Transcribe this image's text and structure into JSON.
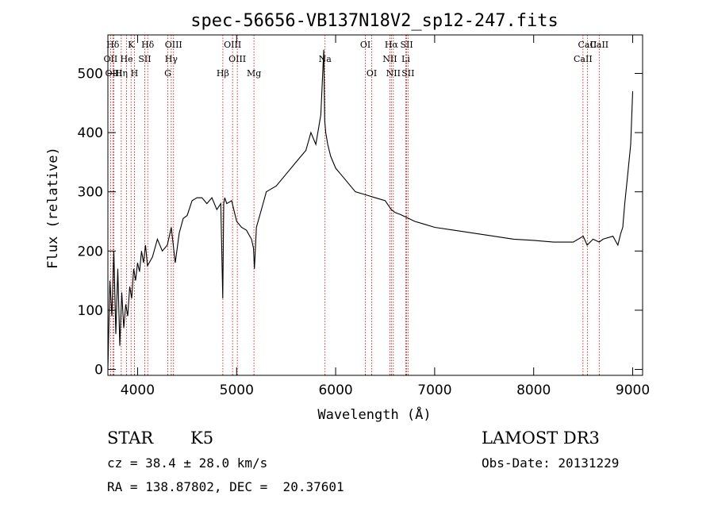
{
  "chart_data": {
    "type": "line",
    "title": "spec-56656-VB137N18V2_sp12-247.fits",
    "xlabel": "Wavelength (Å)",
    "ylabel": "Flux (relative)",
    "xlim": [
      3700,
      9100
    ],
    "ylim": [
      -10,
      565
    ],
    "xticks": [
      4000,
      5000,
      6000,
      7000,
      8000,
      9000
    ],
    "xtick_labels": [
      "4000",
      "5000",
      "6000",
      "7000",
      "8000",
      "9000"
    ],
    "yticks": [
      0,
      100,
      200,
      300,
      400,
      500
    ],
    "ytick_labels": [
      "0",
      "100",
      "200",
      "300",
      "400",
      "500"
    ],
    "series": [
      {
        "name": "flux",
        "x": [
          3700,
          3720,
          3740,
          3760,
          3780,
          3800,
          3820,
          3840,
          3860,
          3880,
          3900,
          3920,
          3940,
          3960,
          3980,
          4000,
          4020,
          4040,
          4060,
          4080,
          4100,
          4150,
          4200,
          4250,
          4300,
          4340,
          4380,
          4420,
          4460,
          4500,
          4550,
          4600,
          4650,
          4700,
          4750,
          4800,
          4840,
          4860,
          4870,
          4880,
          4900,
          4950,
          5000,
          5050,
          5100,
          5150,
          5170,
          5180,
          5200,
          5250,
          5300,
          5400,
          5500,
          5600,
          5700,
          5750,
          5800,
          5850,
          5880,
          5890,
          5900,
          5920,
          5950,
          6000,
          6050,
          6100,
          6150,
          6200,
          6300,
          6400,
          6500,
          6562,
          6600,
          6650,
          6700,
          6800,
          6900,
          7000,
          7200,
          7400,
          7600,
          7800,
          8000,
          8200,
          8400,
          8500,
          8540,
          8600,
          8662,
          8700,
          8800,
          8850,
          8880,
          8900,
          8920,
          8950,
          8980,
          9000
        ],
        "values": [
          0,
          150,
          90,
          200,
          60,
          170,
          40,
          130,
          70,
          110,
          90,
          140,
          120,
          170,
          150,
          180,
          165,
          200,
          180,
          210,
          175,
          190,
          220,
          200,
          210,
          240,
          180,
          230,
          255,
          260,
          285,
          290,
          290,
          280,
          290,
          270,
          280,
          120,
          280,
          290,
          280,
          285,
          250,
          240,
          235,
          220,
          205,
          170,
          240,
          270,
          300,
          310,
          330,
          350,
          370,
          400,
          380,
          430,
          540,
          420,
          400,
          380,
          360,
          340,
          330,
          320,
          310,
          300,
          295,
          290,
          285,
          270,
          265,
          262,
          258,
          250,
          245,
          240,
          235,
          230,
          225,
          220,
          218,
          215,
          215,
          225,
          210,
          220,
          215,
          220,
          225,
          210,
          230,
          240,
          280,
          330,
          380,
          470
        ]
      }
    ],
    "lines": [
      {
        "label": "Hδ",
        "x": 3750
      },
      {
        "label": "K",
        "x": 3934
      },
      {
        "label": "Hδ",
        "x": 4102
      },
      {
        "label": "OIII",
        "x": 4363
      },
      {
        "label": "OIII",
        "x": 4959
      },
      {
        "label": "OI",
        "x": 6300
      },
      {
        "label": "Hα",
        "x": 6563
      },
      {
        "label": "SII",
        "x": 6717
      },
      {
        "label": "CaII",
        "x": 8542
      },
      {
        "label": "OII",
        "x": 3727
      },
      {
        "label": "He",
        "x": 3889
      },
      {
        "label": "SII",
        "x": 4072
      },
      {
        "label": "Hγ",
        "x": 4340
      },
      {
        "label": "OIII",
        "x": 5007
      },
      {
        "label": "Na",
        "x": 5893
      },
      {
        "label": "NII",
        "x": 6548
      },
      {
        "label": "Li",
        "x": 6708
      },
      {
        "label": "CaII",
        "x": 8498
      },
      {
        "label": "OIII",
        "x": 3760
      },
      {
        "label": "Hη",
        "x": 3835
      },
      {
        "label": "H",
        "x": 3968
      },
      {
        "label": "G",
        "x": 4305
      },
      {
        "label": "Hβ",
        "x": 4861
      },
      {
        "label": "Mg",
        "x": 5175
      },
      {
        "label": "OI",
        "x": 6364
      },
      {
        "label": "NII",
        "x": 6583
      },
      {
        "label": "SII",
        "x": 6731
      },
      {
        "label": "CaII",
        "x": 8662
      }
    ],
    "grid": false
  },
  "info": {
    "class": "STAR",
    "subclass": "K5",
    "survey": "LAMOST DR3",
    "cz": "cz = 38.4 ± 28.0 km/s",
    "obs_date": "Obs-Date: 20131229",
    "coords": "RA = 138.87802, DEC =  20.37601"
  },
  "colors": {
    "line": "#000000",
    "marker_line": "#cc0000",
    "axis": "#000000"
  }
}
